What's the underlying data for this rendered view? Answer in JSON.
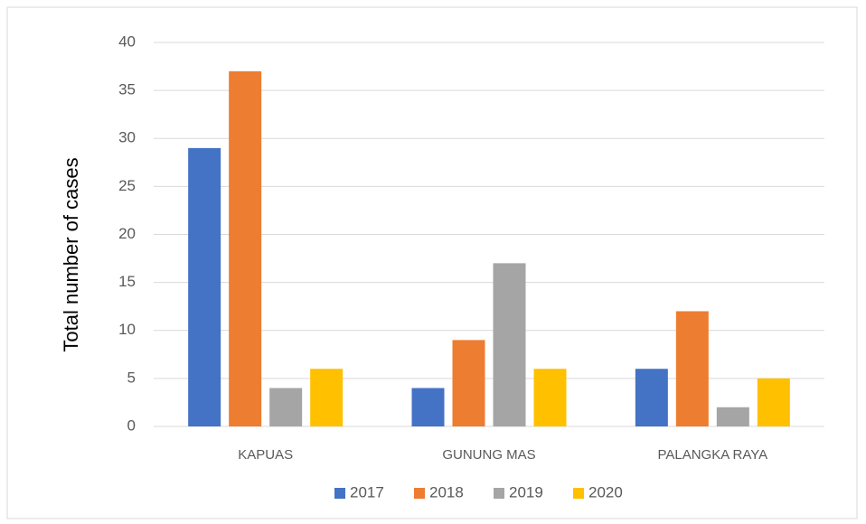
{
  "chart_data": {
    "type": "bar",
    "y_label": "Total number of cases",
    "categories": [
      "KAPUAS",
      "GUNUNG MAS",
      "PALANGKA RAYA"
    ],
    "series": [
      {
        "name": "2017",
        "color": "#4472c4",
        "values": [
          29,
          4,
          6
        ]
      },
      {
        "name": "2018",
        "color": "#ed7d31",
        "values": [
          37,
          9,
          12
        ]
      },
      {
        "name": "2019",
        "color": "#a5a5a5",
        "values": [
          4,
          17,
          2
        ]
      },
      {
        "name": "2020",
        "color": "#ffc000",
        "values": [
          6,
          6,
          5
        ]
      }
    ],
    "ylim": [
      0,
      40
    ],
    "yticks": [
      0,
      5,
      10,
      15,
      20,
      25,
      30,
      35,
      40
    ],
    "grid": true,
    "legend": "bottom"
  }
}
